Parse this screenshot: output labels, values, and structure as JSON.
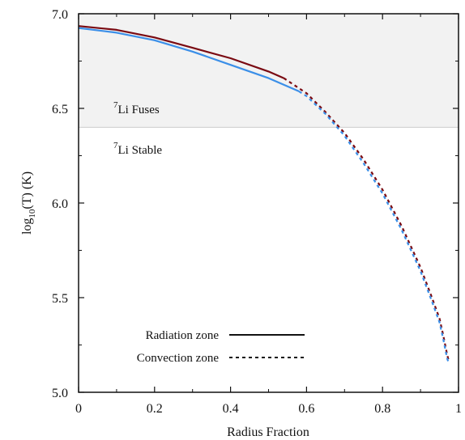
{
  "chart_data": {
    "type": "line",
    "title": "",
    "xlabel": "Radius Fraction",
    "ylabel": {
      "prefix": "log",
      "subscript": "10",
      "suffix": "(T) (K)"
    },
    "xlim": [
      0,
      1
    ],
    "ylim": [
      5.0,
      7.0
    ],
    "x_ticks": [
      "0",
      "0.2",
      "0.4",
      "0.6",
      "0.8",
      "1"
    ],
    "y_ticks": [
      "5.0",
      "5.5",
      "6.0",
      "6.5",
      "7.0"
    ],
    "x_tick_values": [
      0,
      0.2,
      0.4,
      0.6,
      0.8,
      1.0
    ],
    "y_tick_values": [
      5.0,
      5.5,
      6.0,
      6.5,
      7.0
    ],
    "grid": false,
    "threshold": {
      "y": 6.4,
      "fill_color": "#f2f2f2",
      "line_color": "#cccccc",
      "above_label": {
        "sup": "7",
        "text": "Li Fuses"
      },
      "below_label": {
        "sup": "7",
        "text": "Li Stable"
      }
    },
    "legend": {
      "placement": "bottom-left",
      "entries": [
        {
          "label": "Radiation zone",
          "style": "solid"
        },
        {
          "label": "Convection zone",
          "style": "dashed"
        }
      ]
    },
    "series": [
      {
        "color": "#7a0a12",
        "segments": [
          {
            "style": "solid",
            "x": [
              0.0,
              0.1,
              0.2,
              0.3,
              0.4,
              0.5,
              0.54
            ],
            "y": [
              6.935,
              6.915,
              6.875,
              6.82,
              6.765,
              6.695,
              6.66
            ]
          },
          {
            "style": "dashed",
            "x": [
              0.54,
              0.6,
              0.65,
              0.7,
              0.75,
              0.8,
              0.85,
              0.9,
              0.93,
              0.95,
              0.96,
              0.97,
              0.975
            ],
            "y": [
              6.66,
              6.58,
              6.48,
              6.37,
              6.23,
              6.07,
              5.88,
              5.66,
              5.5,
              5.39,
              5.3,
              5.2,
              5.16
            ]
          }
        ]
      },
      {
        "color": "#3b8fe8",
        "segments": [
          {
            "style": "solid",
            "x": [
              0.0,
              0.1,
              0.2,
              0.3,
              0.4,
              0.5,
              0.58
            ],
            "y": [
              6.925,
              6.9,
              6.86,
              6.8,
              6.73,
              6.66,
              6.59
            ]
          },
          {
            "style": "dashed",
            "x": [
              0.58,
              0.6,
              0.65,
              0.7,
              0.75,
              0.8,
              0.85,
              0.9,
              0.93,
              0.95,
              0.96,
              0.97,
              0.975
            ],
            "y": [
              6.59,
              6.565,
              6.47,
              6.355,
              6.21,
              6.05,
              5.86,
              5.64,
              5.48,
              5.37,
              5.28,
              5.18,
              5.15
            ]
          }
        ]
      }
    ]
  }
}
